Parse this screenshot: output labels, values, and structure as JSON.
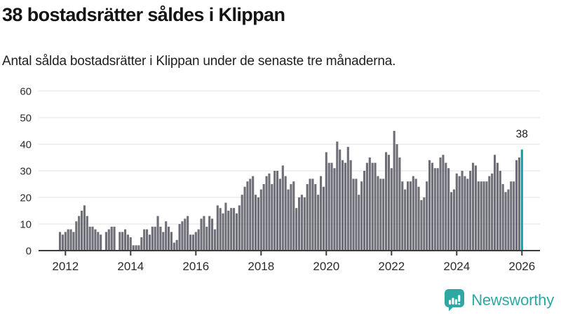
{
  "chart_data": {
    "type": "bar",
    "title": "38 bostadsrätter såldes i Klippan",
    "subtitle": "Antal sålda bostadsrätter i Klippan under de senaste tre månaderna.",
    "x_start": "2011-11",
    "x_end": "2026-01",
    "frequency": "monthly",
    "values": [
      7,
      6,
      7,
      8,
      8,
      7,
      11,
      13,
      15,
      17,
      13,
      9,
      9,
      8,
      7,
      6,
      0,
      7,
      8,
      9,
      9,
      0,
      7,
      7,
      8,
      6,
      5,
      2,
      2,
      2,
      5,
      8,
      8,
      6,
      9,
      9,
      13,
      9,
      7,
      11,
      9,
      7,
      3,
      4,
      10,
      11,
      12,
      13,
      6,
      6,
      7,
      8,
      12,
      13,
      9,
      13,
      12,
      8,
      17,
      16,
      14,
      18,
      15,
      16,
      16,
      14,
      17,
      21,
      24,
      26,
      27,
      28,
      21,
      20,
      23,
      25,
      28,
      29,
      25,
      30,
      30,
      27,
      32,
      28,
      23,
      25,
      26,
      16,
      20,
      21,
      20,
      25,
      27,
      27,
      25,
      21,
      28,
      24,
      37,
      33,
      33,
      31,
      41,
      38,
      34,
      33,
      39,
      34,
      27,
      27,
      21,
      26,
      30,
      33,
      35,
      33,
      33,
      28,
      27,
      27,
      37,
      36,
      31,
      45,
      40,
      35,
      26,
      23,
      26,
      26,
      28,
      27,
      24,
      19,
      20,
      26,
      34,
      33,
      31,
      31,
      35,
      36,
      33,
      31,
      22,
      23,
      29,
      28,
      30,
      28,
      27,
      30,
      33,
      32,
      26,
      26,
      26,
      26,
      28,
      29,
      36,
      33,
      30,
      25,
      22,
      23,
      26,
      26,
      34,
      35,
      38
    ],
    "highlight": {
      "index": 170,
      "label": "38",
      "value": 38
    },
    "ylim": [
      0,
      60
    ],
    "yticks": [
      0,
      10,
      20,
      30,
      40,
      50,
      60
    ],
    "xtick_years": [
      2012,
      2014,
      2016,
      2018,
      2020,
      2022,
      2024,
      2026
    ],
    "grid": true,
    "legend": "none",
    "colors": {
      "bar": "#6e6e76",
      "highlight": "#0aa2a2",
      "grid": "#e6e6e6",
      "axis": "#3c3c3c",
      "tick_label": "#2b2b2b",
      "annotation": "#1a1a1a"
    }
  },
  "footer": {
    "brand": "Newsworthy",
    "brand_color": "#2fa7a3",
    "icon": "newsworthy-bars-bubble-icon"
  }
}
